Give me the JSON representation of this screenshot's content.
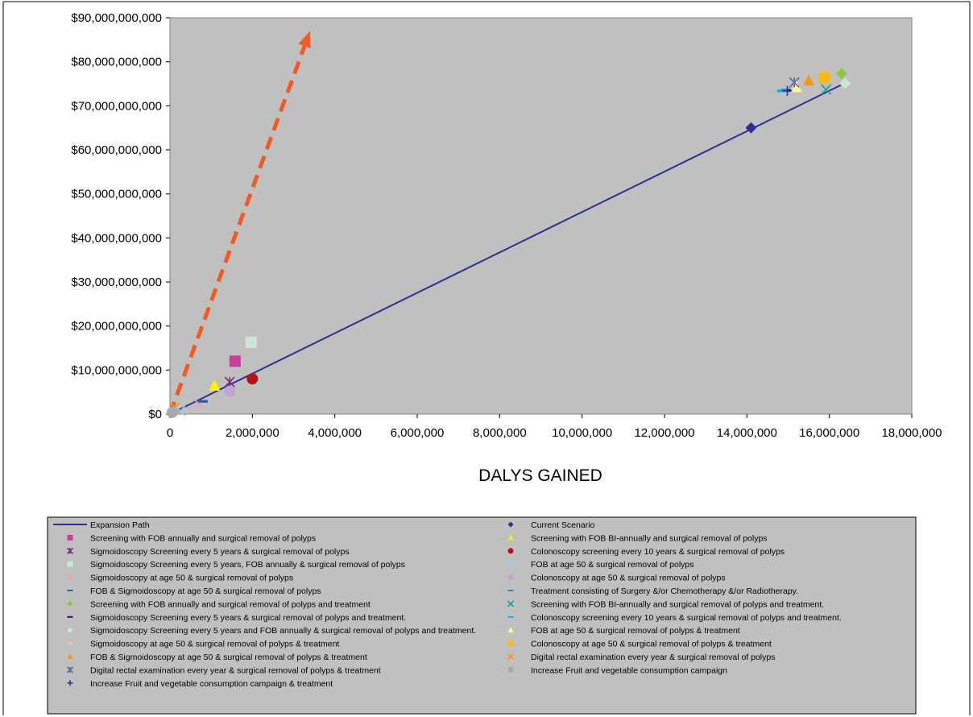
{
  "chart_data": {
    "type": "scatter",
    "title": "",
    "xlabel": "DALYS GAINED",
    "ylabel": "",
    "xlim": [
      0,
      18000000
    ],
    "ylim": [
      0,
      90000000000
    ],
    "x_ticks": [
      0,
      2000000,
      4000000,
      6000000,
      8000000,
      10000000,
      12000000,
      14000000,
      16000000,
      18000000
    ],
    "x_tick_labels": [
      "0",
      "2,000,000",
      "4,000,000",
      "6,000,000",
      "8,000,000",
      "10,000,000",
      "12,000,000",
      "14,000,000",
      "16,000,000",
      "18,000,000"
    ],
    "y_ticks": [
      0,
      10000000000,
      20000000000,
      30000000000,
      40000000000,
      50000000000,
      60000000000,
      70000000000,
      80000000000,
      90000000000
    ],
    "y_tick_labels": [
      "$0",
      "$10,000,000,000",
      "$20,000,000,000",
      "$30,000,000,000",
      "$40,000,000,000",
      "$50,000,000,000",
      "$60,000,000,000",
      "$70,000,000,000",
      "$80,000,000,000",
      "$90,000,000,000"
    ],
    "grid": false,
    "plot_background": "#c0c0c0",
    "legend_position": "bottom",
    "expansion_path": {
      "name": "Expansion Path",
      "color": "#2e3192",
      "points": [
        [
          0,
          0
        ],
        [
          16300000,
          74800000000
        ]
      ]
    },
    "arrow": {
      "color": "#f15a22",
      "style": "dashed",
      "from": [
        0,
        0
      ],
      "to": [
        3400000,
        87000000000
      ]
    },
    "series": [
      {
        "name": "Current Scenario",
        "marker": "diamond",
        "color": "#2e3192",
        "x": 14100000,
        "y": 65000000000
      },
      {
        "name": "Screening with FOB annually and surgical removal of polyps",
        "marker": "square",
        "color": "#cc3e9b",
        "x": 1580000,
        "y": 12000000000
      },
      {
        "name": "Screening with FOB BI-annually and surgical removal of polyps",
        "marker": "triangle",
        "color": "#fff200",
        "x": 1080000,
        "y": 6400000000
      },
      {
        "name": "Sigmoidoscopy Screening every 5 years & surgical removal of polyps",
        "marker": "asterisk",
        "color": "#7b2a7e",
        "x": 1450000,
        "y": 7300000000
      },
      {
        "name": "Colonoscopy screening every 10 years & surgical removal of polyps",
        "marker": "circle",
        "color": "#b5121b",
        "x": 2000000,
        "y": 8000000000
      },
      {
        "name": "Sigmoidoscopy Screening every 5 years, FOB annually & surgical removal of polyps",
        "marker": "square",
        "color": "#cde8d2",
        "x": 1970000,
        "y": 16300000000
      },
      {
        "name": "FOB at age 50 & surgical removal of polyps",
        "marker": "x",
        "color": "#7fd3f7",
        "x": 250000,
        "y": 700000000
      },
      {
        "name": "Sigmoidoscopy at age 50 & surgical removal of polyps",
        "marker": "x",
        "color": "#f49ac1",
        "x": 700000,
        "y": 2300000000
      },
      {
        "name": "Colonoscopy at age 50 & surgical removal of polyps",
        "marker": "circle",
        "color": "#c3a3d3",
        "x": 1450000,
        "y": 5200000000
      },
      {
        "name": "FOB & Sigmoidoscopy at age 50 & surgical removal of polyps",
        "marker": "dash",
        "color": "#2b5ea8",
        "x": 800000,
        "y": 2900000000
      },
      {
        "name": "Treatment consisting of Surgery &/or Chemotherapy &/or Radiotherapy.",
        "marker": "dash",
        "color": "#00a99d",
        "x": 15900000,
        "y": 76300000000
      },
      {
        "name": "Screening with FOB annually and surgical removal of polyps and treatment",
        "marker": "diamond",
        "color": "#8dc63f",
        "x": 16300000,
        "y": 77300000000
      },
      {
        "name": "Screening with FOB BI-annually and surgical removal of polyps and treatment.",
        "marker": "x",
        "color": "#00a99d",
        "x": 15920000,
        "y": 73700000000
      },
      {
        "name": "Sigmoidoscopy Screening every 5 years & surgical removal of polyps and treatment.",
        "marker": "dash",
        "color": "#1b1464",
        "x": 14950000,
        "y": 73500000000
      },
      {
        "name": "Colonoscopy screening every 10 years & surgical removal of polyps and treatment.",
        "marker": "dash",
        "color": "#00aeef",
        "x": 14850000,
        "y": 73400000000
      },
      {
        "name": "Sigmoidoscopy Screening every 5 years and FOB annually & surgical removal of polyps and treatment.",
        "marker": "diamond",
        "color": "#cde8d2",
        "x": 16380000,
        "y": 75100000000
      },
      {
        "name": "FOB at age 50 & surgical removal of polyps & treatment",
        "marker": "triangle",
        "color": "#fff799",
        "x": 15200000,
        "y": 74200000000
      },
      {
        "name": "Sigmoidoscopy at age 50 & surgical removal of polyps & treatment",
        "marker": "dash",
        "color": "#f9c7a5",
        "x": 30000,
        "y": 300000000
      },
      {
        "name": "Colonoscopy at age 50 & surgical removal of polyps & treatment",
        "marker": "square",
        "color": "#fdb913",
        "x": 15880000,
        "y": 76400000000
      },
      {
        "name": "FOB & Sigmoidoscopy at age 50 & surgical removal of polyps & treatment",
        "marker": "triangle",
        "color": "#f7941d",
        "x": 15500000,
        "y": 75700000000
      },
      {
        "name": "Digital rectal examination every year & surgical removal of polyps",
        "marker": "x",
        "color": "#f7941d",
        "x": 120000,
        "y": 1500000000
      },
      {
        "name": "Digital rectal examination every year & surgical removal of polyps & treatment",
        "marker": "asterisk",
        "color": "#5a6b9c",
        "x": 15150000,
        "y": 75300000000
      },
      {
        "name": "Increase Fruit and vegetable consumption campaign",
        "marker": "circle",
        "color": "#a7a9ac",
        "x": 60000,
        "y": 400000000
      },
      {
        "name": "Increase Fruit and vegetable consumption campaign & treatment",
        "marker": "plus",
        "color": "#2e3192",
        "x": 14980000,
        "y": 73400000000
      }
    ]
  }
}
